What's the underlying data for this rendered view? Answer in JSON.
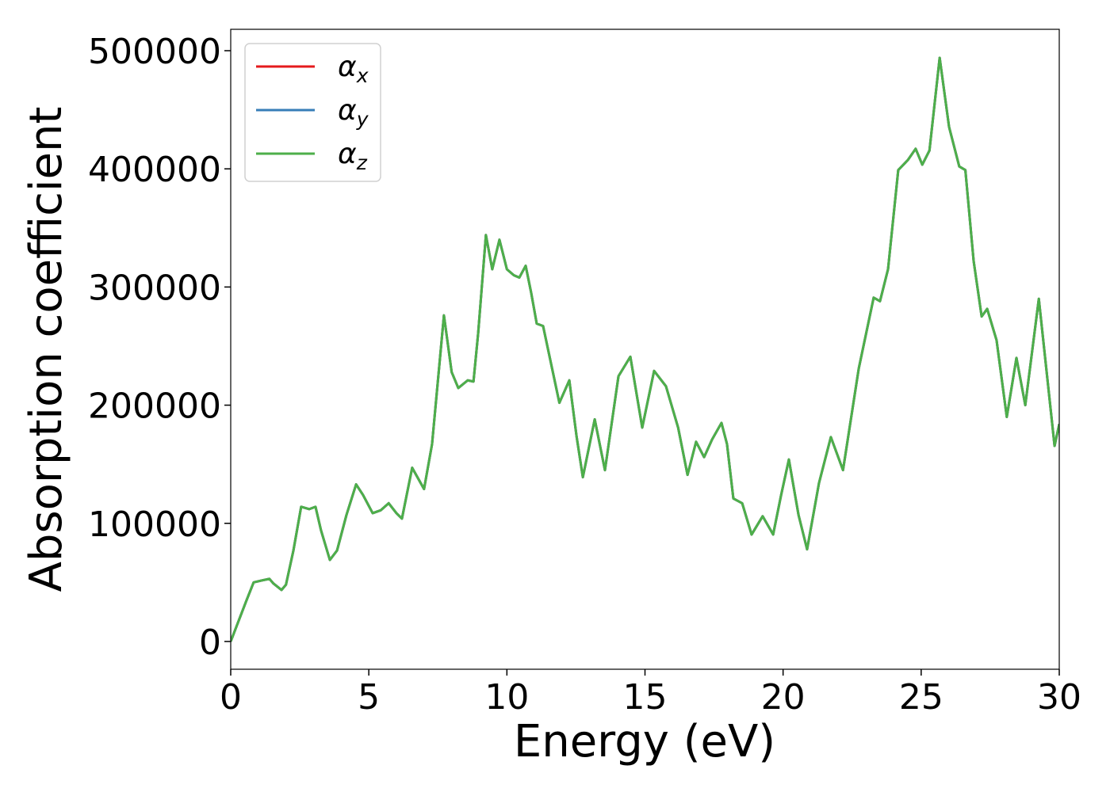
{
  "chart_data": {
    "type": "line",
    "xlabel": "Energy (eV)",
    "ylabel": "Absorption coefficient",
    "x": [
      0,
      0.55,
      0.83,
      1.12,
      1.4,
      1.55,
      1.84,
      2.0,
      2.27,
      2.55,
      2.84,
      3.07,
      3.27,
      3.59,
      3.85,
      4.19,
      4.54,
      4.79,
      5.14,
      5.43,
      5.72,
      6.0,
      6.2,
      6.57,
      7.0,
      7.29,
      7.72,
      8.0,
      8.24,
      8.58,
      8.79,
      8.96,
      9.24,
      9.47,
      9.73,
      10.0,
      10.25,
      10.45,
      10.68,
      10.88,
      11.08,
      11.31,
      11.6,
      11.9,
      12.26,
      12.52,
      12.75,
      13.18,
      13.55,
      14.04,
      14.47,
      14.9,
      15.33,
      15.76,
      16.2,
      16.54,
      16.85,
      17.14,
      17.43,
      17.77,
      17.97,
      18.2,
      18.52,
      18.86,
      19.26,
      19.64,
      19.93,
      20.21,
      20.56,
      20.87,
      21.3,
      21.73,
      22.17,
      22.74,
      23.28,
      23.51,
      23.8,
      24.17,
      24.52,
      24.8,
      25.04,
      25.3,
      25.67,
      26.01,
      26.38,
      26.6,
      26.9,
      27.19,
      27.39,
      27.73,
      28.1,
      28.45,
      28.77,
      29.26,
      29.83,
      30.0
    ],
    "series": [
      {
        "name": "αx",
        "color": "#e41a1c",
        "values": [
          0,
          33500,
          50000,
          51600,
          53000,
          49000,
          43600,
          48000,
          77000,
          114000,
          112000,
          114000,
          94000,
          69000,
          77000,
          107000,
          133000,
          124000,
          108600,
          111000,
          117000,
          108600,
          104000,
          147000,
          129000,
          167000,
          276000,
          228000,
          214500,
          221000,
          220000,
          261000,
          344000,
          315000,
          340000,
          315000,
          310000,
          308000,
          318000,
          295000,
          269000,
          267000,
          235000,
          202000,
          221000,
          174000,
          139000,
          188000,
          145000,
          224500,
          241000,
          181000,
          229000,
          216000,
          181000,
          141000,
          169000,
          156000,
          171000,
          185000,
          167000,
          121000,
          117000,
          90500,
          106000,
          90500,
          124000,
          154000,
          107000,
          78000,
          134000,
          173000,
          145000,
          231000,
          291000,
          288000,
          315000,
          399000,
          407500,
          417000,
          403500,
          415500,
          494000,
          435500,
          402000,
          399000,
          322000,
          275000,
          281500,
          255000,
          190000,
          240000,
          200000,
          290000,
          165500,
          184000
        ]
      },
      {
        "name": "αy",
        "color": "#377eb8",
        "values": [
          0,
          33500,
          50000,
          51600,
          53000,
          49000,
          43600,
          48000,
          77000,
          114000,
          112000,
          114000,
          94000,
          69000,
          77000,
          107000,
          133000,
          124000,
          108600,
          111000,
          117000,
          108600,
          104000,
          147000,
          129000,
          167000,
          276000,
          228000,
          214500,
          221000,
          220000,
          261000,
          344000,
          315000,
          340000,
          315000,
          310000,
          308000,
          318000,
          295000,
          269000,
          267000,
          235000,
          202000,
          221000,
          174000,
          139000,
          188000,
          145000,
          224500,
          241000,
          181000,
          229000,
          216000,
          181000,
          141000,
          169000,
          156000,
          171000,
          185000,
          167000,
          121000,
          117000,
          90500,
          106000,
          90500,
          124000,
          154000,
          107000,
          78000,
          134000,
          173000,
          145000,
          231000,
          291000,
          288000,
          315000,
          399000,
          407500,
          417000,
          403500,
          415500,
          494000,
          435500,
          402000,
          399000,
          322000,
          275000,
          281500,
          255000,
          190000,
          240000,
          200000,
          290000,
          165500,
          184000
        ]
      },
      {
        "name": "αz",
        "color": "#4daf4a",
        "values": [
          0,
          33500,
          50000,
          51600,
          53000,
          49000,
          43600,
          48000,
          77000,
          114000,
          112000,
          114000,
          94000,
          69000,
          77000,
          107000,
          133000,
          124000,
          108600,
          111000,
          117000,
          108600,
          104000,
          147000,
          129000,
          167000,
          276000,
          228000,
          214500,
          221000,
          220000,
          261000,
          344000,
          315000,
          340000,
          315000,
          310000,
          308000,
          318000,
          295000,
          269000,
          267000,
          235000,
          202000,
          221000,
          174000,
          139000,
          188000,
          145000,
          224500,
          241000,
          181000,
          229000,
          216000,
          181000,
          141000,
          169000,
          156000,
          171000,
          185000,
          167000,
          121000,
          117000,
          90500,
          106000,
          90500,
          124000,
          154000,
          107000,
          78000,
          134000,
          173000,
          145000,
          231000,
          291000,
          288000,
          315000,
          399000,
          407500,
          417000,
          403500,
          415500,
          494000,
          435500,
          402000,
          399000,
          322000,
          275000,
          281500,
          255000,
          190000,
          240000,
          200000,
          290000,
          165500,
          184000
        ]
      }
    ],
    "xlim": [
      0,
      30
    ],
    "xticks": [
      0,
      5,
      10,
      15,
      20,
      25,
      30
    ],
    "ylim": [
      -23500,
      518100
    ],
    "yticks": [
      0,
      100000,
      200000,
      300000,
      400000,
      500000
    ],
    "grid": false,
    "legend": "upper left"
  }
}
